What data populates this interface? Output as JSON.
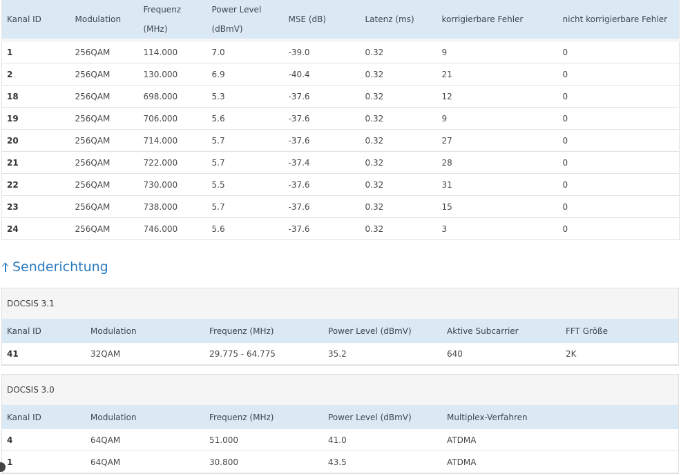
{
  "downstream": {
    "headers": [
      "Kanal ID",
      "Modulation",
      "Frequenz (MHz)",
      "Power Level (dBmV)",
      "MSE (dB)",
      "Latenz (ms)",
      "korrigierbare Fehler",
      "nicht korrigierbare Fehler"
    ],
    "rows": [
      [
        "1",
        "256QAM",
        "114.000",
        "7.0",
        "-39.0",
        "0.32",
        "9",
        "0"
      ],
      [
        "2",
        "256QAM",
        "130.000",
        "6.9",
        "-40.4",
        "0.32",
        "21",
        "0"
      ],
      [
        "18",
        "256QAM",
        "698.000",
        "5.3",
        "-37.6",
        "0.32",
        "12",
        "0"
      ],
      [
        "19",
        "256QAM",
        "706.000",
        "5.6",
        "-37.6",
        "0.32",
        "9",
        "0"
      ],
      [
        "20",
        "256QAM",
        "714.000",
        "5.7",
        "-37.6",
        "0.32",
        "27",
        "0"
      ],
      [
        "21",
        "256QAM",
        "722.000",
        "5.7",
        "-37.4",
        "0.32",
        "28",
        "0"
      ],
      [
        "22",
        "256QAM",
        "730.000",
        "5.5",
        "-37.6",
        "0.32",
        "31",
        "0"
      ],
      [
        "23",
        "256QAM",
        "738.000",
        "5.7",
        "-37.6",
        "0.32",
        "15",
        "0"
      ],
      [
        "24",
        "256QAM",
        "746.000",
        "5.6",
        "-37.6",
        "0.32",
        "3",
        "0"
      ]
    ]
  },
  "upstream": {
    "heading": "Senderichtung",
    "icon": "arrow-up-icon",
    "docsis31": {
      "title": "DOCSIS 3.1",
      "headers": [
        "Kanal ID",
        "Modulation",
        "Frequenz (MHz)",
        "Power Level (dBmV)",
        "Aktive Subcarrier",
        "FFT Größe"
      ],
      "rows": [
        [
          "41",
          "32QAM",
          "29.775 - 64.775",
          "35.2",
          "640",
          "2K"
        ]
      ]
    },
    "docsis30": {
      "title": "DOCSIS 3.0",
      "headers": [
        "Kanal ID",
        "Modulation",
        "Frequenz (MHz)",
        "Power Level (dBmV)",
        "Multiplex-Verfahren",
        ""
      ],
      "rows": [
        [
          "4",
          "64QAM",
          "51.000",
          "41.0",
          "ATDMA",
          ""
        ],
        [
          "1",
          "64QAM",
          "30.800",
          "43.5",
          "ATDMA",
          ""
        ]
      ]
    }
  },
  "colors": {
    "header_bg": "#dbe9f5",
    "heading_blue": "#2a7bbf",
    "panel_bg": "#f5f5f5"
  }
}
